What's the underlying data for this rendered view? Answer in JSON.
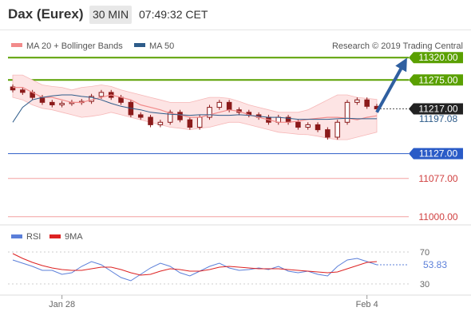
{
  "header": {
    "title": "Dax (Eurex)",
    "timeframe": "30 MIN",
    "time": "07:49:32 CET"
  },
  "legend": {
    "ma20_bb": "MA 20 + Bollinger Bands",
    "ma50": "MA 50",
    "credit": "Research © 2019 Trading Central",
    "rsi": "RSI",
    "ma9": "9MA"
  },
  "colors": {
    "target": "#5aa000",
    "support": "#2a5bc7",
    "bearish": "#f4a0a0",
    "price_badge": "#222222",
    "candle": "#8b1a1a",
    "candle_up": "#ffffff",
    "bb_fill": "#fde4e4",
    "ma20": "#f28b8b",
    "ma50": "#2e5c8a",
    "rsi": "#5b7fd9",
    "rsi_ma": "#dd2222",
    "arrow": "#2f5fa0"
  },
  "price_labels": [
    {
      "value": 11320.0,
      "text": "11320.00",
      "kind": "target"
    },
    {
      "value": 11275.0,
      "text": "11275.00",
      "kind": "target"
    },
    {
      "value": 11217.0,
      "text": "11217.00",
      "kind": "current"
    },
    {
      "value": 11197.08,
      "text": "11197.08",
      "kind": "ma"
    },
    {
      "value": 11127.0,
      "text": "11127.00",
      "kind": "support"
    },
    {
      "value": 11077.0,
      "text": "11077.00",
      "kind": "bearish"
    },
    {
      "value": 11000.0,
      "text": "11000.00",
      "kind": "bearish"
    }
  ],
  "chart_data": {
    "type": "line",
    "main_series": [
      {
        "name": "MA 20 + Bollinger Bands",
        "role": "ma20",
        "values": [
          11260,
          11260,
          11250,
          11240,
          11240,
          11235,
          11230,
          11230,
          11235,
          11240,
          11245,
          11240,
          11235,
          11225,
          11220,
          11215,
          11208,
          11205,
          11200,
          11200,
          11205,
          11210,
          11215,
          11212,
          11205,
          11200,
          11195,
          11190,
          11190,
          11192,
          11196,
          11198,
          11200,
          11200,
          11198,
          11195,
          11200,
          11203
        ]
      },
      {
        "name": "MA 50",
        "role": "ma50",
        "values": [
          11190,
          11220,
          11235,
          11240,
          11243,
          11245,
          11245,
          11242,
          11240,
          11235,
          11228,
          11222,
          11218,
          11215,
          11210,
          11208,
          11206,
          11205,
          11204,
          11205,
          11205,
          11204,
          11204,
          11205,
          11204,
          11202,
          11200,
          11200,
          11198,
          11196,
          11196,
          11196,
          11196,
          11197,
          11198,
          11197,
          11197,
          11197
        ]
      },
      {
        "name": "Bollinger upper",
        "role": "bb_upper",
        "values": [
          11285,
          11285,
          11275,
          11265,
          11262,
          11260,
          11255,
          11260,
          11262,
          11265,
          11262,
          11255,
          11250,
          11245,
          11240,
          11235,
          11230,
          11230,
          11230,
          11235,
          11240,
          11240,
          11238,
          11232,
          11225,
          11220,
          11215,
          11210,
          11210,
          11210,
          11215,
          11225,
          11235,
          11245,
          11245,
          11240,
          11238,
          11236
        ]
      },
      {
        "name": "Bollinger lower",
        "role": "bb_lower",
        "values": [
          11240,
          11235,
          11225,
          11218,
          11215,
          11210,
          11205,
          11200,
          11202,
          11205,
          11210,
          11205,
          11200,
          11195,
          11190,
          11185,
          11180,
          11178,
          11175,
          11178,
          11180,
          11185,
          11190,
          11190,
          11185,
          11180,
          11175,
          11170,
          11168,
          11166,
          11165,
          11162,
          11158,
          11155,
          11155,
          11160,
          11165,
          11170
        ]
      },
      {
        "name": "Price",
        "role": "price",
        "values": [
          11255,
          11250,
          11240,
          11230,
          11225,
          11228,
          11230,
          11232,
          11242,
          11250,
          11240,
          11230,
          11205,
          11200,
          11185,
          11190,
          11210,
          11195,
          11180,
          11200,
          11220,
          11230,
          11215,
          11210,
          11205,
          11200,
          11190,
          11200,
          11190,
          11180,
          11185,
          11175,
          11160,
          11190,
          11230,
          11235,
          11222,
          11217
        ]
      }
    ],
    "rsi_series": [
      {
        "name": "RSI",
        "values": [
          60,
          56,
          52,
          47,
          47,
          42,
          44,
          52,
          58,
          54,
          46,
          38,
          34,
          42,
          50,
          56,
          52,
          44,
          40,
          46,
          52,
          56,
          50,
          47,
          48,
          50,
          48,
          52,
          46,
          44,
          46,
          42,
          40,
          52,
          60,
          62,
          58,
          54
        ]
      },
      {
        "name": "9MA",
        "values": [
          68,
          62,
          57,
          53,
          50,
          48,
          47,
          47,
          49,
          51,
          51,
          48,
          44,
          41,
          42,
          46,
          49,
          48,
          46,
          46,
          48,
          51,
          52,
          51,
          50,
          49,
          49,
          49,
          48,
          47,
          46,
          45,
          44,
          45,
          49,
          53,
          57,
          58
        ]
      }
    ],
    "rsi_value": "53.83",
    "rsi_levels": [
      {
        "value": 70,
        "text": "70"
      },
      {
        "value": 30,
        "text": "30"
      }
    ],
    "x_ticks": [
      {
        "index": 5,
        "text": "Jan 28"
      },
      {
        "index": 36,
        "text": "Feb 4"
      }
    ],
    "ylim": [
      10990,
      11330
    ],
    "rsi_ylim": [
      20,
      80
    ],
    "arrow": {
      "from_index": 37,
      "from_value": 11210,
      "to_value": 11318
    }
  }
}
